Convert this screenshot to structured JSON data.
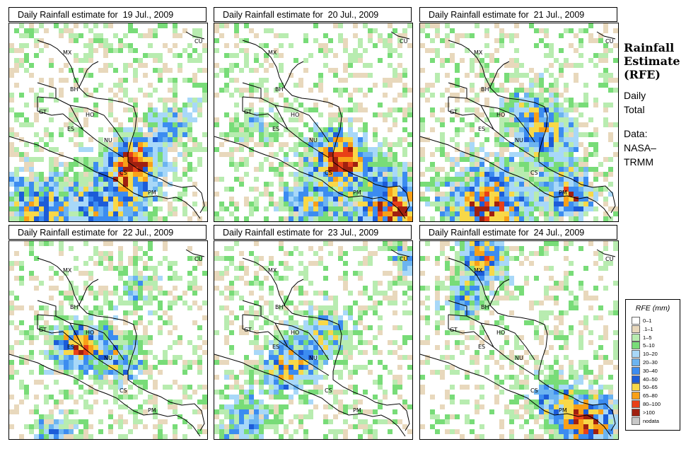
{
  "panels": [
    {
      "title": "Daily Rainfall estimate for  19 Jul., 2009"
    },
    {
      "title": "Daily Rainfall estimate for  20 Jul., 2009"
    },
    {
      "title": "Daily Rainfall estimate for  21 Jul., 2009"
    },
    {
      "title": "Daily Rainfall estimate for  22 Jul., 2009"
    },
    {
      "title": "Daily Rainfall estimate for  23 Jul., 2009"
    },
    {
      "title": "Daily Rainfall estimate for  24 Jul., 2009"
    }
  ],
  "country_labels": [
    "MX",
    "BH",
    "GT",
    "HO",
    "ES",
    "NU",
    "CS",
    "PM",
    "CU"
  ],
  "sidebar": {
    "title_lines": [
      "Rainfall",
      "Estimate",
      "(RFE)"
    ],
    "subtitle_lines": [
      "Daily",
      "Total"
    ],
    "source_lines": [
      "Data:",
      "NASA–",
      "TRMM"
    ]
  },
  "legend": {
    "title": "RFE (mm)",
    "items": [
      {
        "label": "0–1",
        "color": "#ffffff"
      },
      {
        "label": ".1–1",
        "color": "#e8d8bc"
      },
      {
        "label": "1–5",
        "color": "#b8ecb0"
      },
      {
        "label": "5–10",
        "color": "#78dc78"
      },
      {
        "label": "10–20",
        "color": "#a8d8f8"
      },
      {
        "label": "20–30",
        "color": "#6cb4f0"
      },
      {
        "label": "30–40",
        "color": "#3c8cf0"
      },
      {
        "label": "40–50",
        "color": "#1c5cd8"
      },
      {
        "label": "50–65",
        "color": "#f8d848"
      },
      {
        "label": "65–80",
        "color": "#f8a018"
      },
      {
        "label": "80–100",
        "color": "#e84018"
      },
      {
        "label": ">100",
        "color": "#a02010"
      },
      {
        "label": "nodata",
        "color": "#c8c8c8"
      }
    ]
  }
}
